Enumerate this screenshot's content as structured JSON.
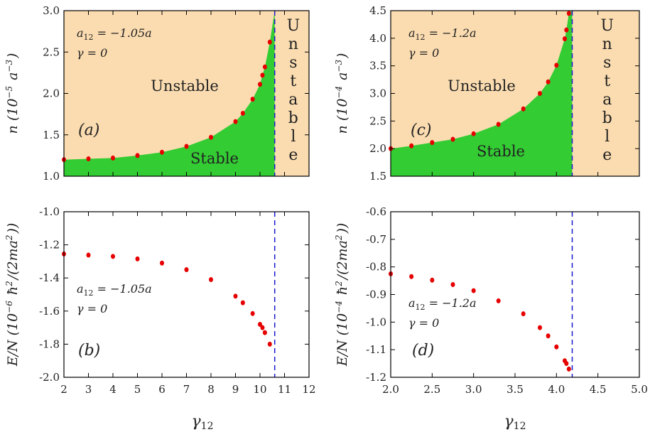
{
  "colors": {
    "stable": "#33cc33",
    "unstable": "#fbdcb0",
    "points": "#e60000",
    "boundary": "#1a1acc"
  },
  "x_axis_label": "γ12",
  "chart_data": [
    {
      "type": "area",
      "panel_label": "(a)",
      "param1": "a12 = −1.05a",
      "param2": "γ = 0",
      "ylabel": "n (10^−5 a^−3)",
      "xlim": [
        2,
        12
      ],
      "ylim": [
        1.0,
        3.0
      ],
      "xticks": [
        2,
        3,
        4,
        5,
        6,
        7,
        8,
        9,
        10,
        11,
        12
      ],
      "yticks": [
        "1.0",
        "1.5",
        "2.0",
        "2.5",
        "3.0"
      ],
      "show_xticklabels": false,
      "boundary_x": 10.6,
      "stable_label": "Stable",
      "unstable_label": "Unstable",
      "unstable_right_label": [
        "U",
        "n",
        "s",
        "t",
        "a",
        "b",
        "l",
        "e"
      ],
      "points": [
        [
          2,
          1.2
        ],
        [
          3,
          1.21
        ],
        [
          4,
          1.22
        ],
        [
          5,
          1.25
        ],
        [
          6,
          1.29
        ],
        [
          7,
          1.36
        ],
        [
          8,
          1.47
        ],
        [
          9,
          1.66
        ],
        [
          9.3,
          1.76
        ],
        [
          9.7,
          1.93
        ],
        [
          10,
          2.11
        ],
        [
          10.1,
          2.22
        ],
        [
          10.2,
          2.32
        ],
        [
          10.4,
          2.62
        ]
      ]
    },
    {
      "type": "scatter",
      "panel_label": "(b)",
      "param1": "a12 = −1.05a",
      "param2": "γ = 0",
      "ylabel": "E/N (10^−6 ħ^2/(2ma^2))",
      "xlim": [
        2,
        12
      ],
      "ylim": [
        -2.0,
        -1.0
      ],
      "xticks": [
        2,
        3,
        4,
        5,
        6,
        7,
        8,
        9,
        10,
        11,
        12
      ],
      "xticklabels": [
        "2",
        "3",
        "4",
        "5",
        "6",
        "7",
        "8",
        "9",
        "10",
        "11",
        "12"
      ],
      "yticks": [
        "-2.0",
        "-1.8",
        "-1.6",
        "-1.4",
        "-1.2",
        "-1.0"
      ],
      "show_xticklabels": true,
      "boundary_x": 10.6,
      "points": [
        [
          2,
          -1.255
        ],
        [
          3,
          -1.262
        ],
        [
          4,
          -1.27
        ],
        [
          5,
          -1.285
        ],
        [
          6,
          -1.31
        ],
        [
          7,
          -1.35
        ],
        [
          8,
          -1.41
        ],
        [
          9,
          -1.51
        ],
        [
          9.3,
          -1.55
        ],
        [
          9.7,
          -1.615
        ],
        [
          10,
          -1.68
        ],
        [
          10.1,
          -1.7
        ],
        [
          10.2,
          -1.73
        ],
        [
          10.4,
          -1.8
        ]
      ]
    },
    {
      "type": "area",
      "panel_label": "(c)",
      "param1": "a12 = −1.2a",
      "param2": "γ = 0",
      "ylabel": "n (10^−4 a^−3)",
      "xlim": [
        2.0,
        5.0
      ],
      "ylim": [
        1.5,
        4.5
      ],
      "xticks": [
        2.0,
        2.5,
        3.0,
        3.5,
        4.0,
        4.5,
        5.0
      ],
      "yticks": [
        "1.5",
        "2.0",
        "2.5",
        "3.0",
        "3.5",
        "4.0",
        "4.5"
      ],
      "show_xticklabels": false,
      "boundary_x": 4.19,
      "stable_label": "Stable",
      "unstable_label": "Unstable",
      "unstable_right_label": [
        "U",
        "n",
        "s",
        "t",
        "a",
        "b",
        "l",
        "e"
      ],
      "points": [
        [
          2.0,
          2.0
        ],
        [
          2.25,
          2.05
        ],
        [
          2.5,
          2.11
        ],
        [
          2.75,
          2.17
        ],
        [
          3.0,
          2.27
        ],
        [
          3.3,
          2.44
        ],
        [
          3.6,
          2.72
        ],
        [
          3.8,
          3.0
        ],
        [
          3.9,
          3.21
        ],
        [
          4.0,
          3.51
        ],
        [
          4.1,
          3.99
        ],
        [
          4.12,
          4.15
        ],
        [
          4.15,
          4.45
        ]
      ]
    },
    {
      "type": "scatter",
      "panel_label": "(d)",
      "param1": "a12 = −1.2a",
      "param2": "γ = 0",
      "ylabel": "E/N (10^−4 ħ^2/(2ma^2))",
      "xlim": [
        2.0,
        5.0
      ],
      "ylim": [
        -1.2,
        -0.6
      ],
      "xticks": [
        2.0,
        2.5,
        3.0,
        3.5,
        4.0,
        4.5,
        5.0
      ],
      "xticklabels": [
        "2.0",
        "2.5",
        "3.0",
        "3.5",
        "4.0",
        "4.5",
        "5.0"
      ],
      "yticks": [
        "-1.2",
        "-1.1",
        "-1.0",
        "-0.9",
        "-0.8",
        "-0.7",
        "-0.6"
      ],
      "show_xticklabels": true,
      "boundary_x": 4.19,
      "points": [
        [
          2.0,
          -0.825
        ],
        [
          2.25,
          -0.835
        ],
        [
          2.5,
          -0.848
        ],
        [
          2.75,
          -0.864
        ],
        [
          3.0,
          -0.886
        ],
        [
          3.3,
          -0.923
        ],
        [
          3.6,
          -0.97
        ],
        [
          3.8,
          -1.02
        ],
        [
          3.9,
          -1.05
        ],
        [
          4.0,
          -1.09
        ],
        [
          4.1,
          -1.14
        ],
        [
          4.12,
          -1.15
        ],
        [
          4.15,
          -1.17
        ]
      ]
    }
  ]
}
